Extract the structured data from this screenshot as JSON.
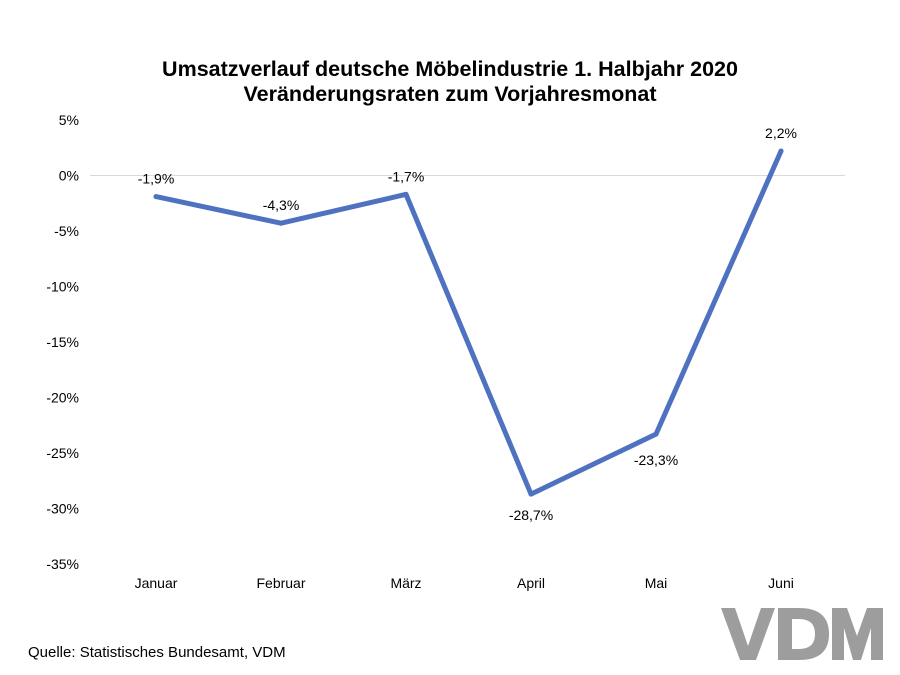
{
  "chart_data": {
    "type": "line",
    "title": "Umsatzverlauf deutsche Möbelindustrie 1. Halbjahr 2020",
    "subtitle": "Veränderungsraten zum Vorjahresmonat",
    "categories": [
      "Januar",
      "Februar",
      "März",
      "April",
      "Mai",
      "Juni"
    ],
    "series": [
      {
        "values": [
          -1.9,
          -4.3,
          -1.7,
          -28.7,
          -23.3,
          2.2
        ]
      }
    ],
    "data_labels": [
      "-1,9%",
      "-4,3%",
      "-1,7%",
      "-28,7%",
      "-23,3%",
      "2,2%"
    ],
    "yticks": [
      "5%",
      "0%",
      "-5%",
      "-10%",
      "-15%",
      "-20%",
      "-25%",
      "-30%",
      "-35%"
    ],
    "ylim": [
      -35,
      5
    ],
    "grid": "zero line only",
    "legend": "none",
    "colors": {
      "line": "#4f72c0",
      "zero_line": "#d9d9d9",
      "logo": "#9d9d9d"
    }
  },
  "source": "Quelle: Statistisches Bundesamt, VDM",
  "logo_text": "VDM"
}
